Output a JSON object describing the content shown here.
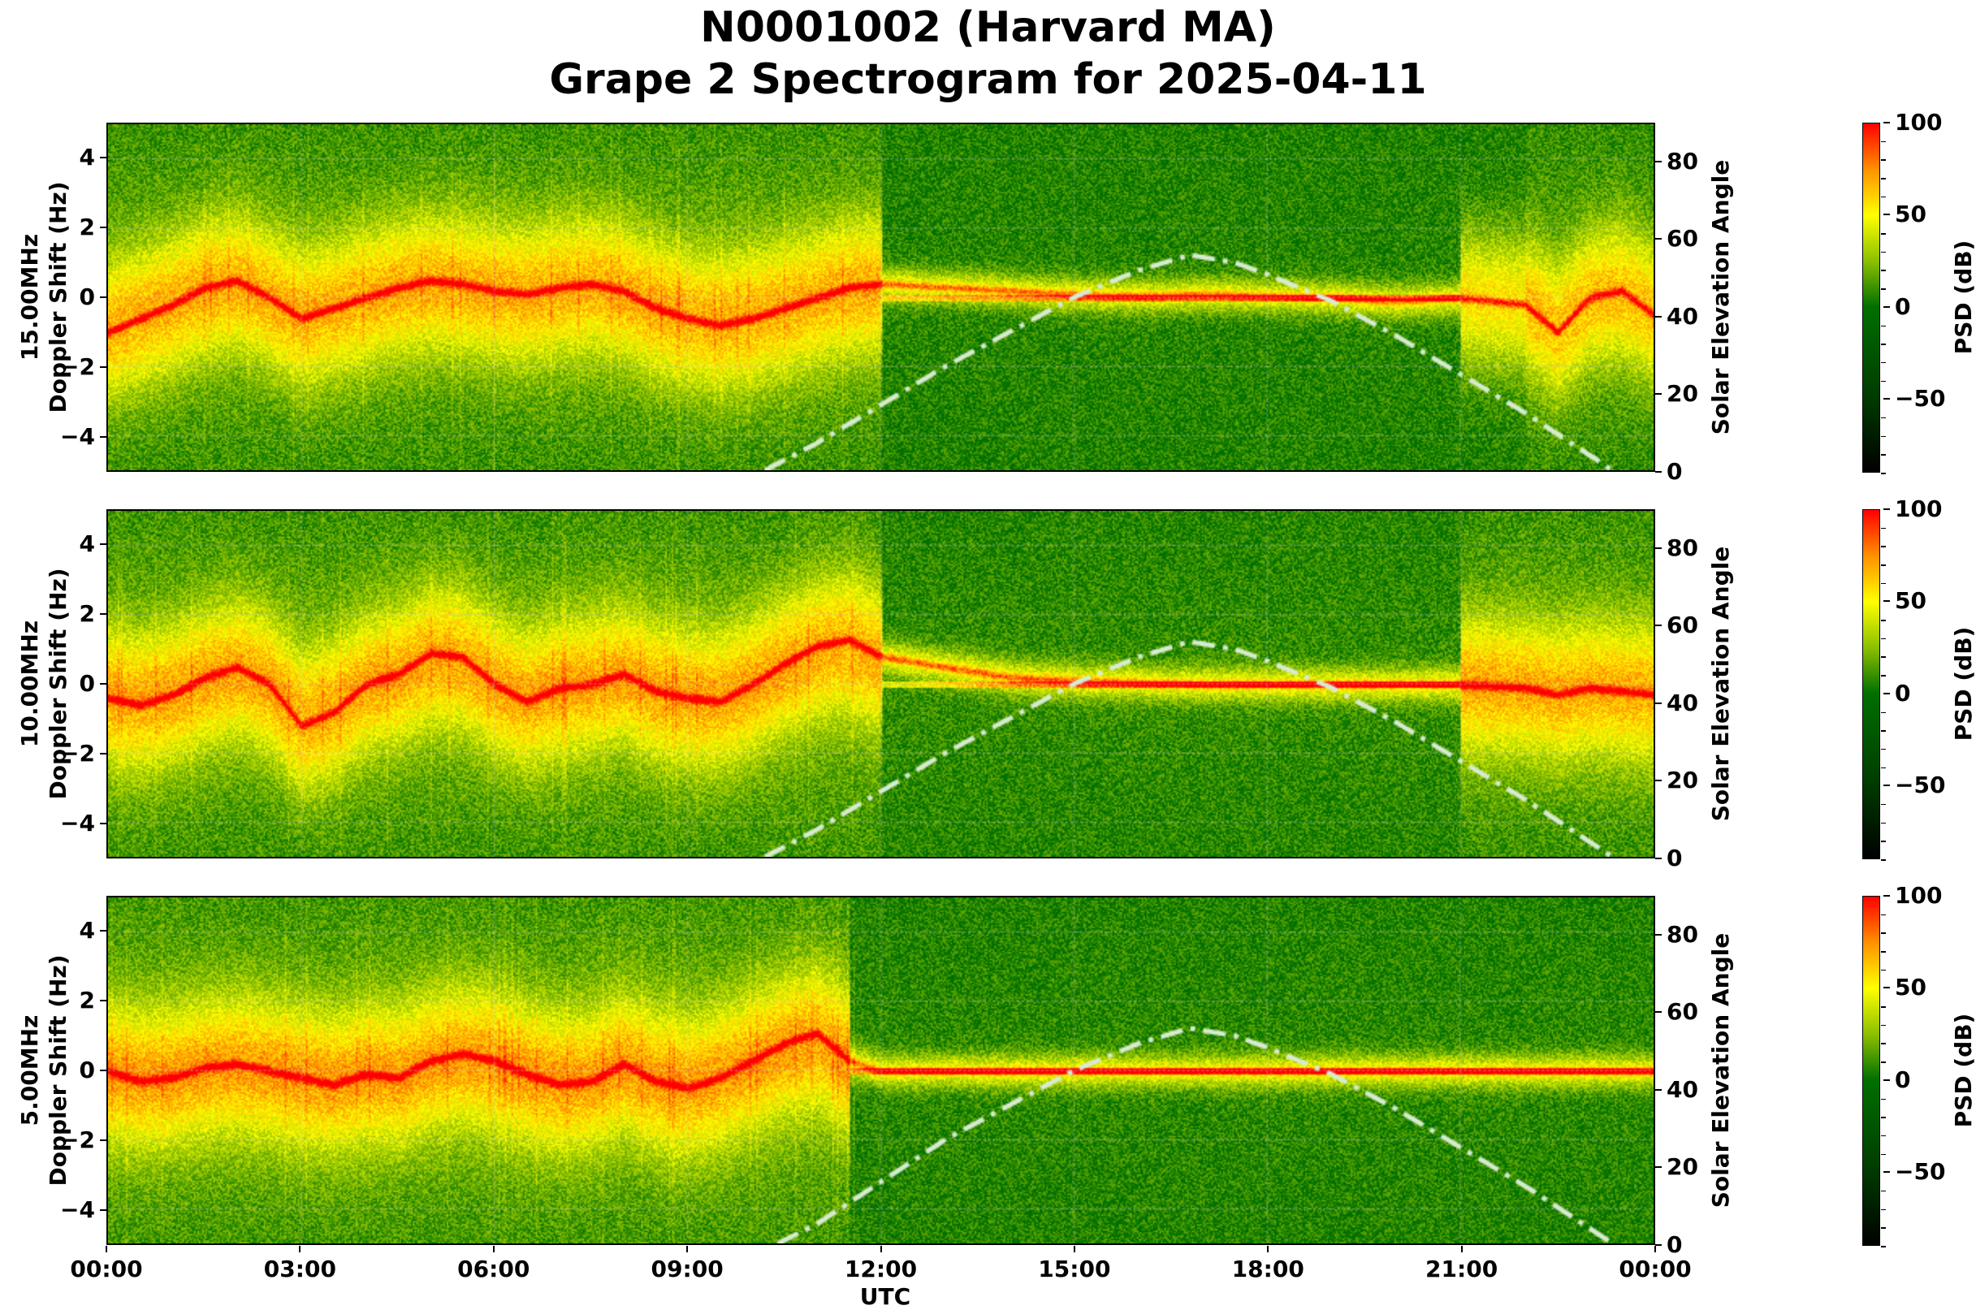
{
  "title": {
    "line1": "N0001002 (Harvard MA)",
    "line2": "Grape 2 Spectrogram for 2025-04-11"
  },
  "x_axis": {
    "label": "UTC",
    "ticks": [
      "00:00",
      "03:00",
      "06:00",
      "09:00",
      "12:00",
      "15:00",
      "18:00",
      "21:00",
      "00:00"
    ]
  },
  "y_axis_ticks": [
    "4",
    "2",
    "0",
    "−2",
    "−4"
  ],
  "right_axis": {
    "label": "Solar Elevation Angle",
    "ticks": [
      "80",
      "60",
      "40",
      "20",
      "0"
    ]
  },
  "colorbar": {
    "label": "PSD (dB)",
    "ticks": [
      "100",
      "50",
      "0",
      "−50"
    ],
    "stops": [
      {
        "v": -90,
        "color": "#000000"
      },
      {
        "v": -50,
        "color": "#003a00"
      },
      {
        "v": 0,
        "color": "#007000"
      },
      {
        "v": 25,
        "color": "#8cc000"
      },
      {
        "v": 50,
        "color": "#ffff00"
      },
      {
        "v": 75,
        "color": "#ff9000"
      },
      {
        "v": 100,
        "color": "#ff0000"
      }
    ]
  },
  "panels": [
    {
      "freq_label": "15.00MHz",
      "ylabel": "Doppler Shift (Hz)"
    },
    {
      "freq_label": "10.00MHz",
      "ylabel": "Doppler Shift (Hz)"
    },
    {
      "freq_label": "5.00MHz",
      "ylabel": "Doppler Shift (Hz)"
    }
  ],
  "chart_data": [
    {
      "type": "heatmap",
      "title": "N0001002 (Harvard MA) Grape 2 Spectrogram for 2025-04-11",
      "panel": "15.00MHz",
      "xlabel": "UTC",
      "ylabel": "15.00MHz Doppler Shift (Hz)",
      "y2label": "Solar Elevation Angle",
      "xlim": [
        "00:00",
        "24:00"
      ],
      "ylim": [
        -5,
        5
      ],
      "y2lim": [
        0,
        90
      ],
      "clim": [
        -90,
        100
      ],
      "colorbar_label": "PSD (dB)",
      "grid": true,
      "doppler_trace_hz": {
        "hours": [
          0,
          0.5,
          1,
          1.5,
          2,
          2.5,
          3,
          3.5,
          4,
          4.5,
          5,
          5.5,
          6,
          6.5,
          7,
          7.5,
          8,
          8.5,
          9,
          9.5,
          10,
          10.5,
          11,
          11.5,
          12,
          13,
          14,
          15,
          16,
          17,
          18,
          19,
          20,
          21,
          22,
          22.5,
          23,
          23.5,
          24
        ],
        "values": [
          -1.0,
          -0.6,
          -0.2,
          0.3,
          0.5,
          0.0,
          -0.6,
          -0.3,
          0.0,
          0.3,
          0.5,
          0.4,
          0.2,
          0.1,
          0.3,
          0.4,
          0.2,
          -0.3,
          -0.6,
          -0.8,
          -0.6,
          -0.3,
          0.0,
          0.3,
          0.4,
          0.3,
          0.2,
          0.1,
          0.05,
          0.1,
          0.05,
          0.0,
          -0.1,
          0.0,
          -0.2,
          -1.0,
          0.0,
          0.2,
          -0.5
        ]
      },
      "high_power_hours": [
        0,
        11.5
      ],
      "solar_elevation_deg": {
        "hours": [
          10.2,
          11,
          12,
          13,
          14,
          15,
          16,
          16.8,
          17.5,
          18,
          19,
          20,
          21,
          22,
          23,
          23.36
        ],
        "values": [
          0,
          7,
          17,
          27,
          36,
          45,
          52,
          56,
          54,
          51,
          44,
          35,
          25,
          15,
          4,
          0
        ]
      }
    },
    {
      "type": "heatmap",
      "panel": "10.00MHz",
      "xlabel": "UTC",
      "ylabel": "10.00MHz Doppler Shift (Hz)",
      "y2label": "Solar Elevation Angle",
      "ylim": [
        -5,
        5
      ],
      "y2lim": [
        0,
        90
      ],
      "clim": [
        -90,
        100
      ],
      "doppler_trace_hz": {
        "hours": [
          0,
          0.5,
          1,
          1.5,
          2,
          2.5,
          3,
          3.5,
          4,
          4.5,
          5,
          5.5,
          6,
          6.5,
          7,
          7.5,
          8,
          8.5,
          9,
          9.5,
          10,
          10.5,
          11,
          11.5,
          12,
          13,
          14,
          15,
          16,
          17,
          18,
          19,
          20,
          21,
          22,
          22.5,
          23,
          23.5,
          24
        ],
        "values": [
          -0.4,
          -0.6,
          -0.3,
          0.2,
          0.5,
          0.0,
          -1.2,
          -0.8,
          0.0,
          0.3,
          0.9,
          0.8,
          0.0,
          -0.5,
          -0.1,
          0.0,
          0.3,
          -0.2,
          -0.4,
          -0.5,
          0.0,
          0.6,
          1.1,
          1.3,
          0.8,
          0.5,
          0.2,
          0.1,
          0.05,
          0.0,
          0.0,
          0.0,
          0.0,
          0.0,
          -0.1,
          -0.3,
          -0.1,
          -0.2,
          -0.3
        ]
      },
      "solar_elevation_deg": {
        "hours": [
          10.2,
          11,
          12,
          13,
          14,
          15,
          16,
          16.8,
          17.5,
          18,
          19,
          20,
          21,
          22,
          23,
          23.36
        ],
        "values": [
          0,
          7,
          17,
          27,
          36,
          45,
          52,
          56,
          54,
          51,
          44,
          35,
          25,
          15,
          4,
          0
        ]
      }
    },
    {
      "type": "heatmap",
      "panel": "5.00MHz",
      "xlabel": "UTC",
      "ylabel": "5.00MHz Doppler Shift (Hz)",
      "y2label": "Solar Elevation Angle",
      "ylim": [
        -5,
        5
      ],
      "y2lim": [
        0,
        90
      ],
      "clim": [
        -90,
        100
      ],
      "doppler_trace_hz": {
        "hours": [
          0,
          0.5,
          1,
          1.5,
          2,
          2.5,
          3,
          3.5,
          4,
          4.5,
          5,
          5.5,
          6,
          6.5,
          7,
          7.5,
          8,
          8.5,
          9,
          9.5,
          10,
          10.5,
          11,
          11.5,
          12,
          13,
          14,
          15,
          16,
          17,
          18,
          19,
          20,
          21,
          22,
          22.5,
          23,
          23.5,
          24
        ],
        "values": [
          0.0,
          -0.3,
          -0.2,
          0.1,
          0.2,
          0.0,
          -0.2,
          -0.4,
          -0.1,
          -0.2,
          0.3,
          0.5,
          0.3,
          -0.1,
          -0.4,
          -0.3,
          0.2,
          -0.3,
          -0.5,
          -0.2,
          0.3,
          0.8,
          1.1,
          0.3,
          0.0,
          0.0,
          0.0,
          0.0,
          0.0,
          0.0,
          0.0,
          0.0,
          0.0,
          0.0,
          0.0,
          0.0,
          0.0,
          0.0,
          0.0
        ]
      },
      "solar_elevation_deg": {
        "hours": [
          10.4,
          11,
          12,
          13,
          14,
          15,
          16,
          16.8,
          17.5,
          18,
          19,
          20,
          21,
          22,
          23,
          23.36
        ],
        "values": [
          0,
          5,
          16,
          27,
          36,
          45,
          52,
          56,
          54,
          51,
          44,
          35,
          25,
          15,
          4,
          0
        ]
      }
    }
  ]
}
